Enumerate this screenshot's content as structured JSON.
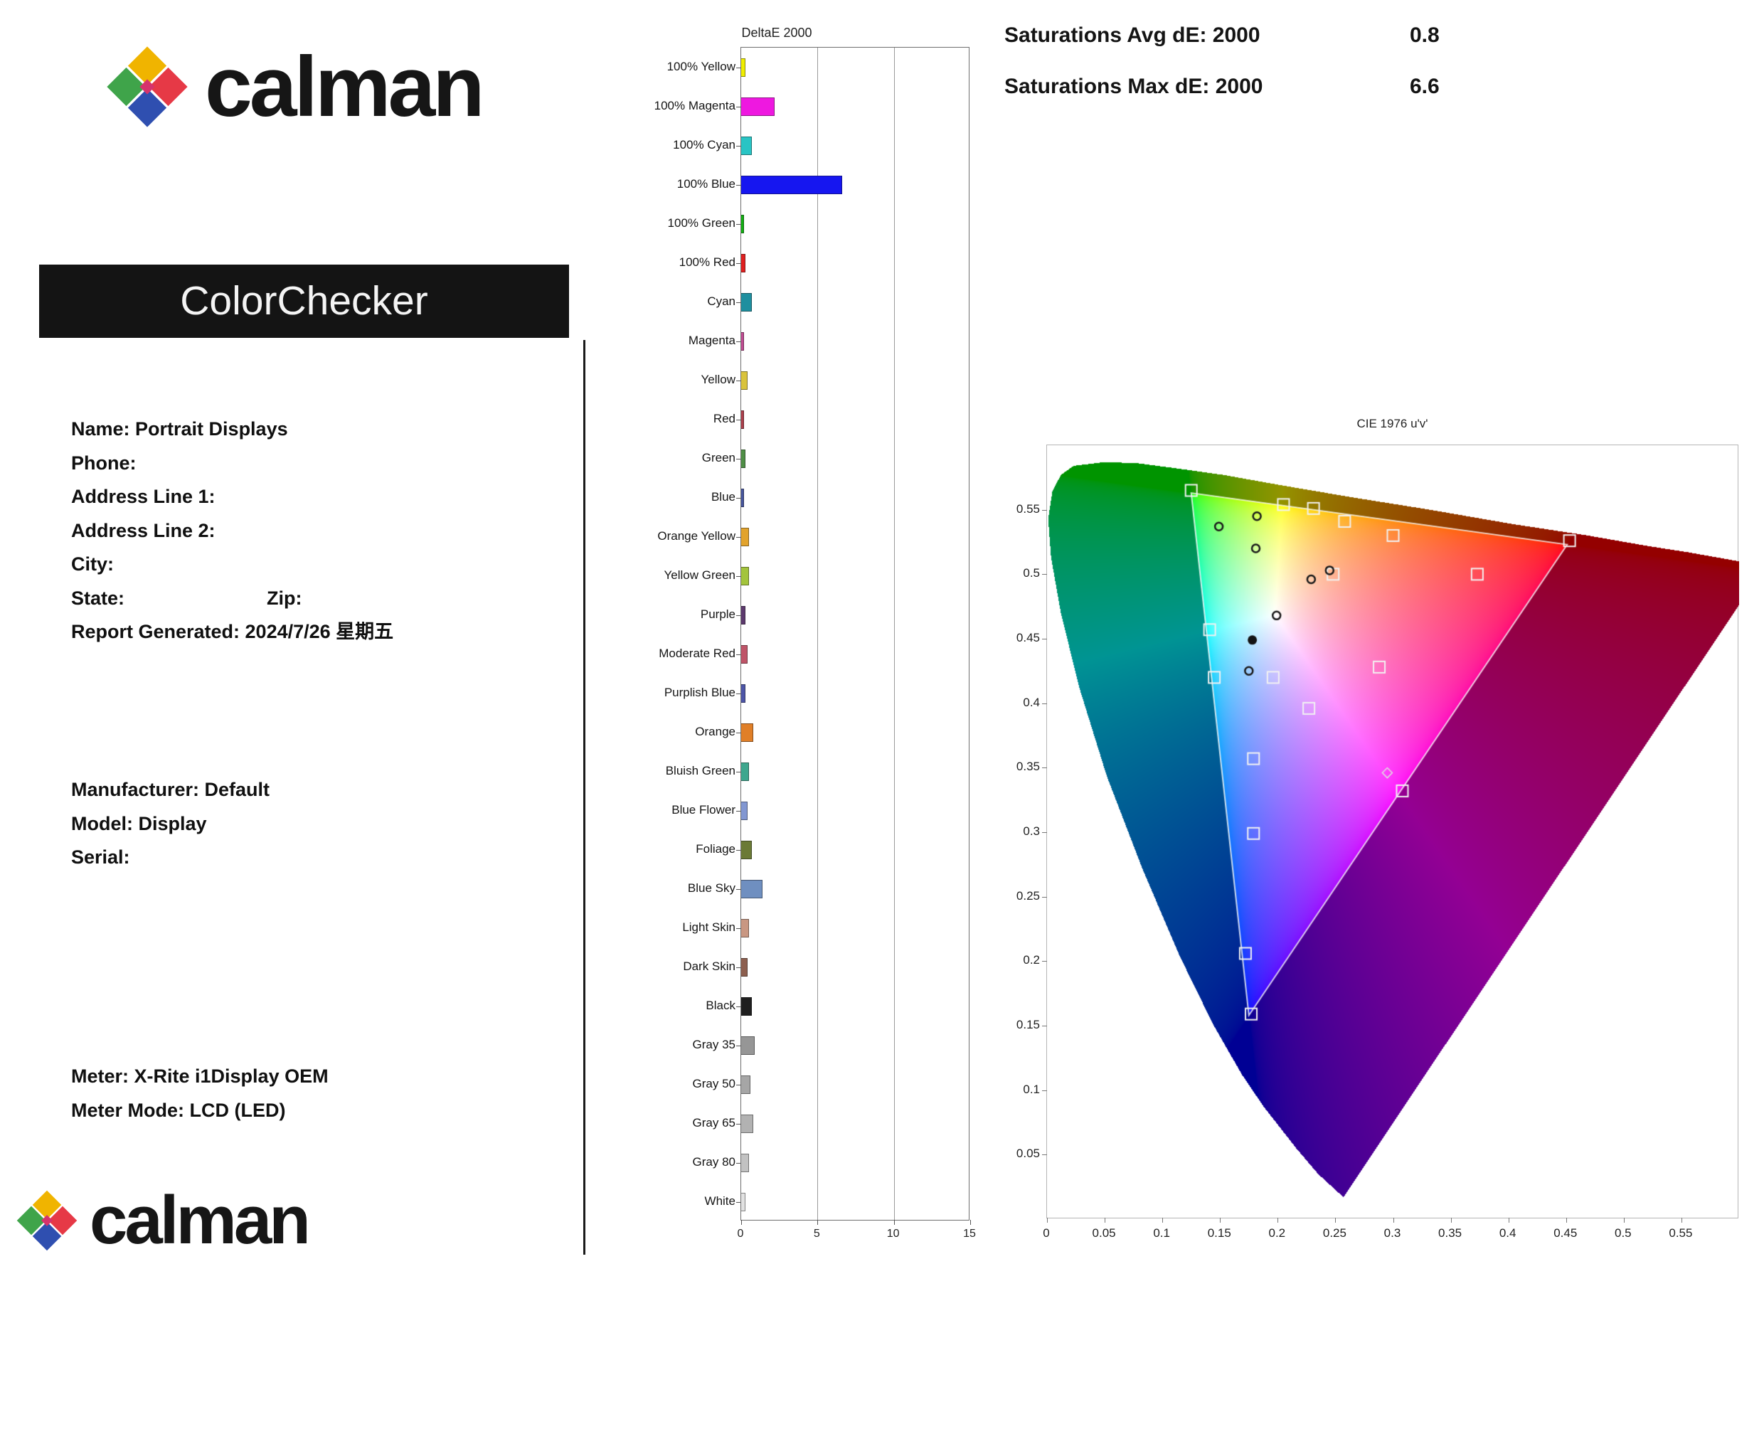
{
  "header": {
    "brand": "calman",
    "report_title": "ColorChecker"
  },
  "footer": {
    "brand": "calman"
  },
  "brand_colors": [
    "#f0b400",
    "#3fa44a",
    "#e63946",
    "#2f4fb0",
    "#d6336c"
  ],
  "info": {
    "name": "Name: Portrait Displays",
    "phone": "Phone:",
    "addr1": "Address Line 1:",
    "addr2": "Address Line 2:",
    "city": "City:",
    "state": "State:",
    "zip": "Zip:",
    "generated": "Report Generated: 2024/7/26 星期五"
  },
  "device": {
    "manufacturer": "Manufacturer: Default",
    "model": "Model: Display",
    "serial": "Serial:"
  },
  "meter": {
    "meter": "Meter: X-Rite i1Display OEM",
    "mode": "Meter Mode: LCD (LED)"
  },
  "saturations": {
    "avg_label": "Saturations Avg dE:  2000",
    "avg_value": "0.8",
    "max_label": "Saturations Max dE: 2000",
    "max_value": "6.6"
  },
  "chart_data": [
    {
      "type": "bar",
      "orientation": "horizontal",
      "title": "DeltaE 2000",
      "xlim": [
        0,
        15
      ],
      "x_ticks": [
        0,
        5,
        10,
        15
      ],
      "grid": "vertical",
      "categories": [
        "100% Yellow",
        "100% Magenta",
        "100% Cyan",
        "100% Blue",
        "100% Green",
        "100% Red",
        "Cyan",
        "Magenta",
        "Yellow",
        "Red",
        "Green",
        "Blue",
        "Orange Yellow",
        "Yellow Green",
        "Purple",
        "Moderate Red",
        "Purplish Blue",
        "Orange",
        "Bluish Green",
        "Blue Flower",
        "Foliage",
        "Blue Sky",
        "Light Skin",
        "Dark Skin",
        "Black",
        "Gray 35",
        "Gray 50",
        "Gray 65",
        "Gray 80",
        "White"
      ],
      "values": [
        0.3,
        2.2,
        0.7,
        6.6,
        0.2,
        0.3,
        0.7,
        0.2,
        0.4,
        0.2,
        0.3,
        0.2,
        0.5,
        0.5,
        0.3,
        0.4,
        0.3,
        0.8,
        0.5,
        0.4,
        0.7,
        1.4,
        0.5,
        0.4,
        0.7,
        0.9,
        0.6,
        0.8,
        0.5,
        0.3
      ],
      "bar_colors": [
        "#f0ee00",
        "#ee18e0",
        "#28c4c4",
        "#1616f0",
        "#12b012",
        "#e02020",
        "#1e8f9f",
        "#c24b93",
        "#d9c33c",
        "#ad3f4b",
        "#4f8f46",
        "#47569e",
        "#e2a32c",
        "#a3c43c",
        "#5d3a6e",
        "#bf5468",
        "#4d55a8",
        "#e07f28",
        "#3ea78e",
        "#8297d2",
        "#6b7a35",
        "#6f8fc0",
        "#c99782",
        "#8d5f4f",
        "#1f1f1f",
        "#969696",
        "#a6a6a6",
        "#b2b2b2",
        "#c2c2c2",
        "#e2e2e2"
      ]
    },
    {
      "type": "scatter",
      "title": "CIE 1976 u'v'",
      "xlim": [
        0,
        0.6
      ],
      "ylim": [
        0,
        0.6
      ],
      "x_ticks": [
        "0",
        "0.05",
        "0.1",
        "0.15",
        "0.2",
        "0.25",
        "0.3",
        "0.35",
        "0.4",
        "0.45",
        "0.5",
        "0.55"
      ],
      "y_ticks": [
        "0.05",
        "0.1",
        "0.15",
        "0.2",
        "0.25",
        "0.3",
        "0.35",
        "0.4",
        "0.45",
        "0.5",
        "0.55"
      ],
      "gamut_triangle": {
        "red": [
          0.451,
          0.523
        ],
        "green": [
          0.125,
          0.563
        ],
        "blue": [
          0.175,
          0.158
        ]
      },
      "white_point": [
        0.178,
        0.449
      ],
      "spectral_locus": [
        [
          0.257,
          0.017
        ],
        [
          0.235,
          0.035
        ],
        [
          0.216,
          0.055
        ],
        [
          0.188,
          0.087
        ],
        [
          0.169,
          0.112
        ],
        [
          0.144,
          0.151
        ],
        [
          0.115,
          0.204
        ],
        [
          0.083,
          0.271
        ],
        [
          0.052,
          0.343
        ],
        [
          0.028,
          0.412
        ],
        [
          0.012,
          0.47
        ],
        [
          0.0035,
          0.513
        ],
        [
          0.001,
          0.543
        ],
        [
          0.0046,
          0.564
        ],
        [
          0.012,
          0.577
        ],
        [
          0.023,
          0.584
        ],
        [
          0.05,
          0.587
        ],
        [
          0.079,
          0.586
        ],
        [
          0.113,
          0.582
        ],
        [
          0.153,
          0.577
        ],
        [
          0.203,
          0.569
        ],
        [
          0.262,
          0.56
        ],
        [
          0.332,
          0.55
        ],
        [
          0.403,
          0.539
        ],
        [
          0.469,
          0.53
        ],
        [
          0.52,
          0.522
        ],
        [
          0.556,
          0.517
        ],
        [
          0.6,
          0.51
        ],
        [
          0.623,
          0.507
        ]
      ],
      "points": [
        {
          "u": 0.125,
          "v": 0.565,
          "type": "target"
        },
        {
          "u": 0.205,
          "v": 0.554,
          "type": "target"
        },
        {
          "u": 0.231,
          "v": 0.551,
          "type": "target"
        },
        {
          "u": 0.258,
          "v": 0.541,
          "type": "target"
        },
        {
          "u": 0.3,
          "v": 0.53,
          "type": "target"
        },
        {
          "u": 0.453,
          "v": 0.526,
          "type": "target"
        },
        {
          "u": 0.373,
          "v": 0.5,
          "type": "target"
        },
        {
          "u": 0.248,
          "v": 0.5,
          "type": "target"
        },
        {
          "u": 0.141,
          "v": 0.457,
          "type": "target"
        },
        {
          "u": 0.145,
          "v": 0.42,
          "type": "target"
        },
        {
          "u": 0.196,
          "v": 0.42,
          "type": "target"
        },
        {
          "u": 0.288,
          "v": 0.428,
          "type": "target"
        },
        {
          "u": 0.227,
          "v": 0.396,
          "type": "target"
        },
        {
          "u": 0.179,
          "v": 0.357,
          "type": "target"
        },
        {
          "u": 0.308,
          "v": 0.332,
          "type": "target"
        },
        {
          "u": 0.179,
          "v": 0.299,
          "type": "target"
        },
        {
          "u": 0.172,
          "v": 0.206,
          "type": "target"
        },
        {
          "u": 0.177,
          "v": 0.159,
          "type": "target"
        },
        {
          "u": 0.149,
          "v": 0.537,
          "type": "measured"
        },
        {
          "u": 0.182,
          "v": 0.545,
          "type": "measured"
        },
        {
          "u": 0.181,
          "v": 0.52,
          "type": "measured"
        },
        {
          "u": 0.245,
          "v": 0.503,
          "type": "measured"
        },
        {
          "u": 0.229,
          "v": 0.496,
          "type": "measured"
        },
        {
          "u": 0.199,
          "v": 0.468,
          "type": "measured"
        },
        {
          "u": 0.175,
          "v": 0.425,
          "type": "measured"
        },
        {
          "u": 0.295,
          "v": 0.346,
          "type": "diamond"
        }
      ]
    }
  ]
}
